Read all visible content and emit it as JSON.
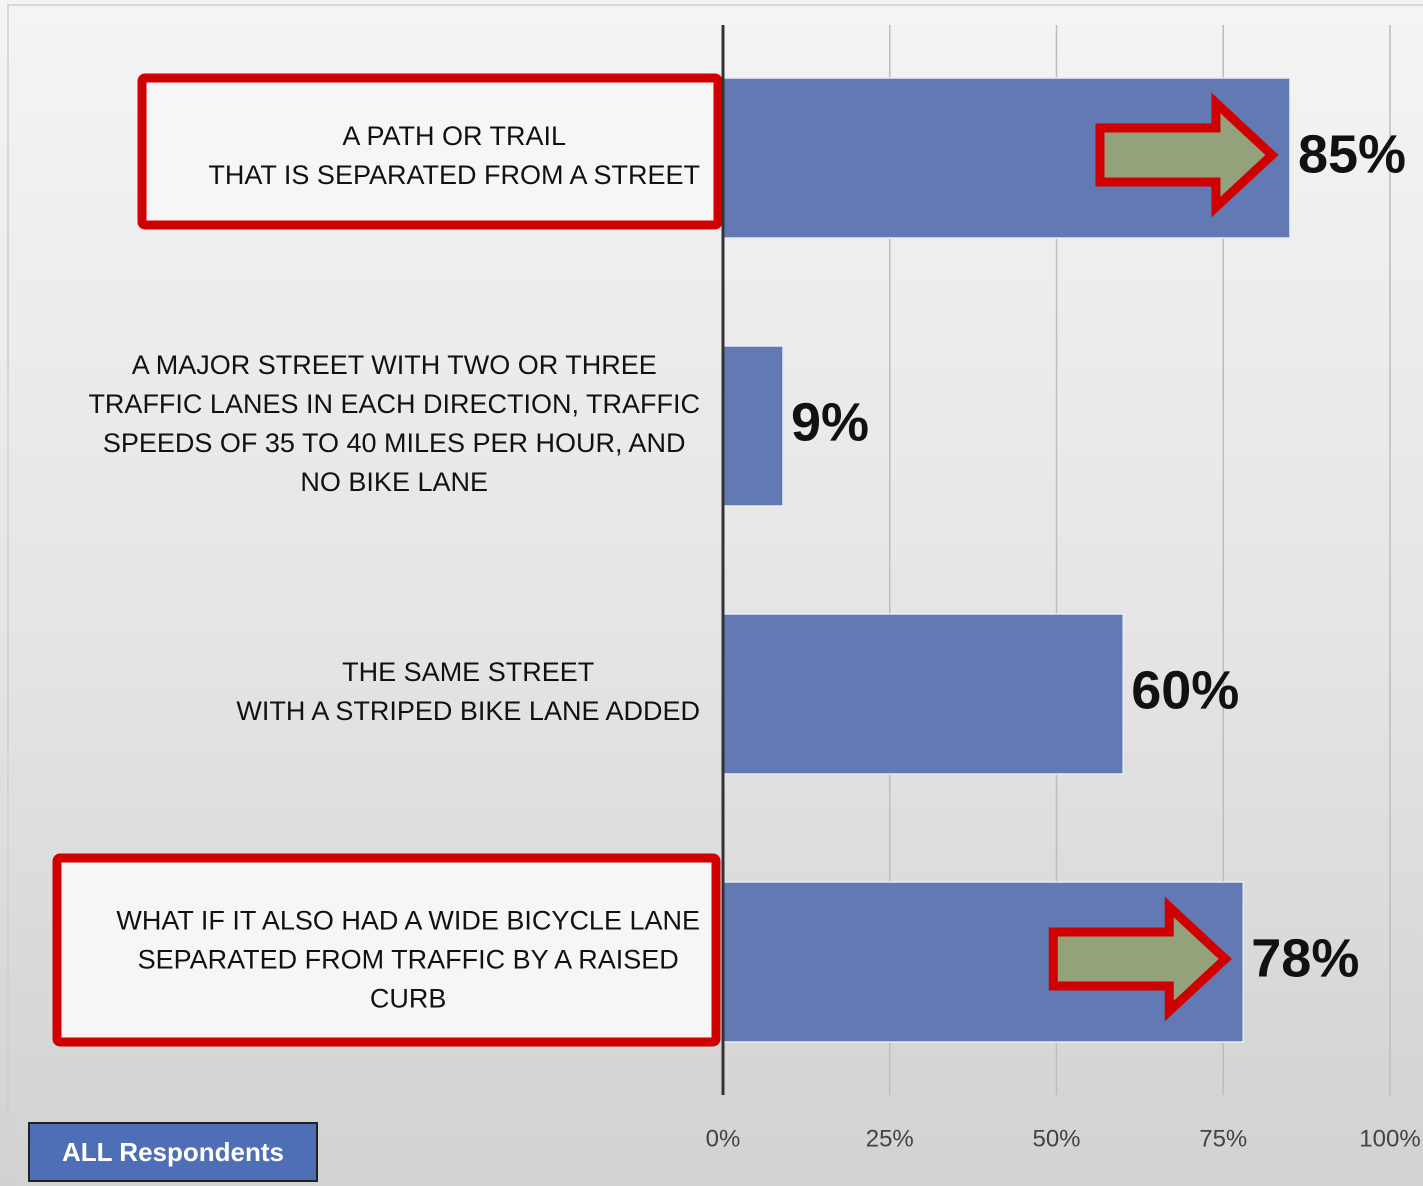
{
  "chart_data": {
    "type": "hbar",
    "categories": [
      "A PATH OR TRAIL\nTHAT IS SEPARATED FROM A STREET",
      "A MAJOR STREET WITH TWO OR THREE\nTRAFFIC LANES IN EACH DIRECTION, TRAFFIC\nSPEEDS OF 35 TO 40 MILES PER HOUR, AND\nNO BIKE LANE",
      "THE SAME STREET\nWITH A STRIPED BIKE LANE ADDED",
      "WHAT IF IT ALSO HAD A WIDE BICYCLE LANE\nSEPARATED FROM TRAFFIC BY A RAISED\nCURB"
    ],
    "values": [
      85,
      9,
      60,
      78
    ],
    "value_labels": [
      "85%",
      "9%",
      "60%",
      "78%"
    ],
    "color": "#6279b4",
    "xlim": [
      0,
      100
    ],
    "xticks": [
      {
        "value": 0,
        "label": "0%"
      },
      {
        "value": 25,
        "label": "25%"
      },
      {
        "value": 50,
        "label": "50%"
      },
      {
        "value": 75,
        "label": "75%"
      },
      {
        "value": 100,
        "label": "100%"
      }
    ],
    "grid": true,
    "highlighted_categories": [
      0,
      3
    ],
    "annotation": "ALL Respondents"
  }
}
